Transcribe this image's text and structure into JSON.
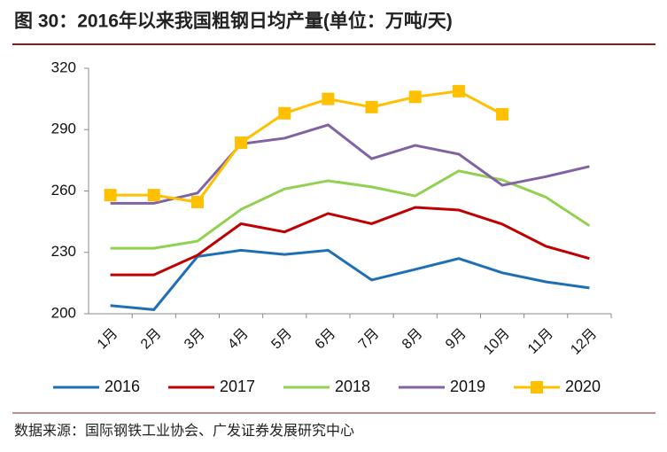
{
  "chart_data": {
    "type": "line",
    "title": "图 30：2016年以来我国粗钢日均产量(单位：万吨/天)",
    "source": "数据来源：国际钢铁工业协会、广发证券发展研究中心",
    "categories": [
      "1月",
      "2月",
      "3月",
      "4月",
      "5月",
      "6月",
      "7月",
      "8月",
      "9月",
      "10月",
      "11月",
      "12月"
    ],
    "series": [
      {
        "name": "2016",
        "color": "#1f6fb5",
        "values": [
          204,
          202,
          228,
          231,
          229,
          231,
          216.5,
          221.7,
          227,
          220,
          215.6,
          212.6
        ]
      },
      {
        "name": "2017",
        "color": "#c00000",
        "values": [
          219,
          219,
          228.6,
          244,
          240,
          249,
          244,
          252,
          250.7,
          243.8,
          233,
          227
        ]
      },
      {
        "name": "2018",
        "color": "#92d050",
        "values": [
          232,
          232,
          235.5,
          251,
          261,
          265,
          262,
          257.6,
          269.8,
          265.4,
          257,
          243
        ]
      },
      {
        "name": "2019",
        "color": "#8064a2",
        "values": [
          254,
          254,
          259,
          283,
          285.8,
          292.3,
          275.8,
          282.3,
          278,
          262.8,
          267,
          272
        ]
      },
      {
        "name": "2020",
        "color": "#ffc000",
        "marker": "square",
        "values": [
          258,
          258,
          254.6,
          283.6,
          298,
          305,
          301,
          306,
          308.8,
          297.5,
          null,
          null
        ]
      }
    ],
    "ylim": [
      200,
      320
    ],
    "yticks": [
      200,
      230,
      260,
      290,
      320
    ],
    "grid": false,
    "legend": "bottom"
  }
}
